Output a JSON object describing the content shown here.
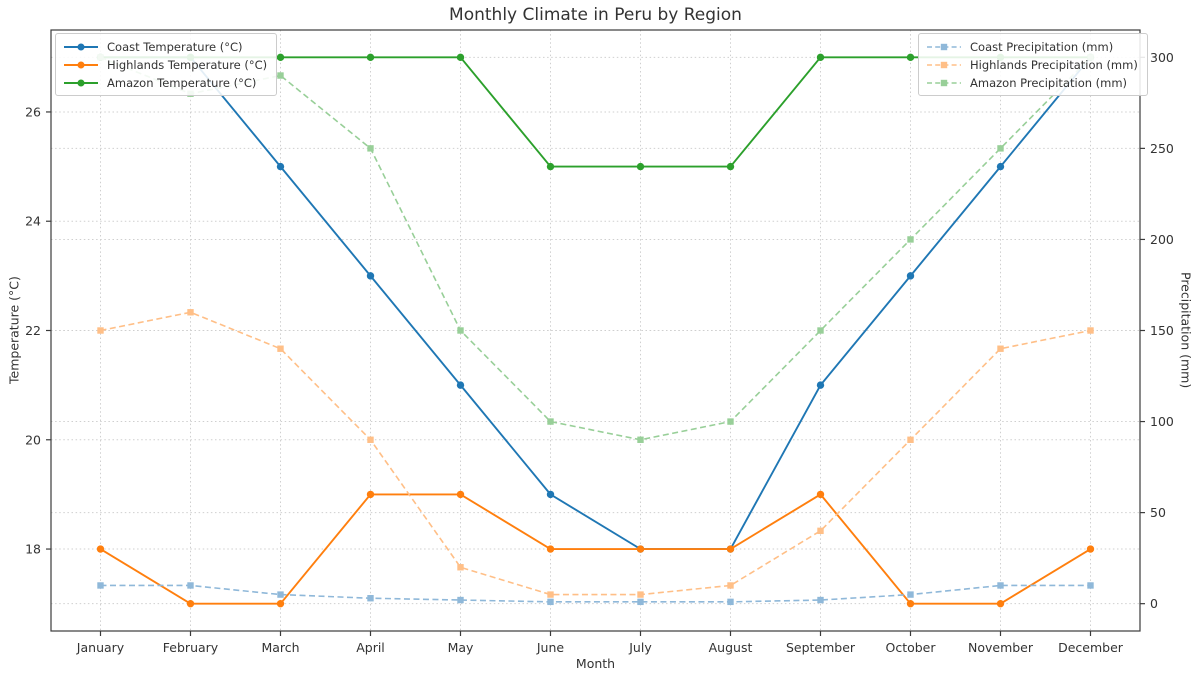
{
  "title": "Monthly Climate in Peru by Region",
  "chart_data": {
    "type": "line",
    "title": "Monthly Climate in Peru by Region",
    "xlabel": "Month",
    "ylabel_left": "Temperature (°C)",
    "ylabel_right": "Precipitation (mm)",
    "grid": true,
    "legend_left_position": "upper left",
    "legend_right_position": "upper right",
    "categories": [
      "January",
      "February",
      "March",
      "April",
      "May",
      "June",
      "July",
      "August",
      "September",
      "October",
      "November",
      "December"
    ],
    "left_axis": {
      "ticks": [
        18,
        20,
        22,
        24,
        26
      ],
      "range": [
        16.5,
        27.5
      ]
    },
    "right_axis": {
      "ticks": [
        0,
        50,
        100,
        150,
        200,
        250,
        300
      ],
      "range": [
        -15,
        315
      ]
    },
    "series": [
      {
        "name": "Coast Temperature (°C)",
        "axis": "left",
        "style": "solid",
        "marker": "circle",
        "color": "#1f77b4",
        "values": [
          27,
          27,
          25,
          23,
          21,
          19,
          18,
          18,
          21,
          23,
          25,
          27
        ]
      },
      {
        "name": "Highlands Temperature (°C)",
        "axis": "left",
        "style": "solid",
        "marker": "circle",
        "color": "#ff7f0e",
        "values": [
          18,
          17,
          17,
          19,
          19,
          18,
          18,
          18,
          19,
          17,
          17,
          18
        ]
      },
      {
        "name": "Amazon Temperature (°C)",
        "axis": "left",
        "style": "solid",
        "marker": "circle",
        "color": "#2ca02c",
        "values": [
          27,
          27,
          27,
          27,
          27,
          25,
          25,
          25,
          27,
          27,
          27,
          27
        ]
      },
      {
        "name": "Coast Precipitation (mm)",
        "axis": "right",
        "style": "dashed",
        "marker": "square",
        "color": "#8fb8d9",
        "values": [
          10,
          10,
          5,
          3,
          2,
          1,
          1,
          1,
          2,
          5,
          10,
          10
        ]
      },
      {
        "name": "Highlands Precipitation (mm)",
        "axis": "right",
        "style": "dashed",
        "marker": "square",
        "color": "#ffbf87",
        "values": [
          150,
          160,
          140,
          90,
          20,
          5,
          5,
          10,
          40,
          90,
          140,
          150
        ]
      },
      {
        "name": "Amazon Precipitation (mm)",
        "axis": "right",
        "style": "dashed",
        "marker": "square",
        "color": "#98cf98",
        "values": [
          300,
          280,
          290,
          250,
          150,
          100,
          90,
          100,
          150,
          200,
          250,
          300
        ]
      }
    ]
  }
}
